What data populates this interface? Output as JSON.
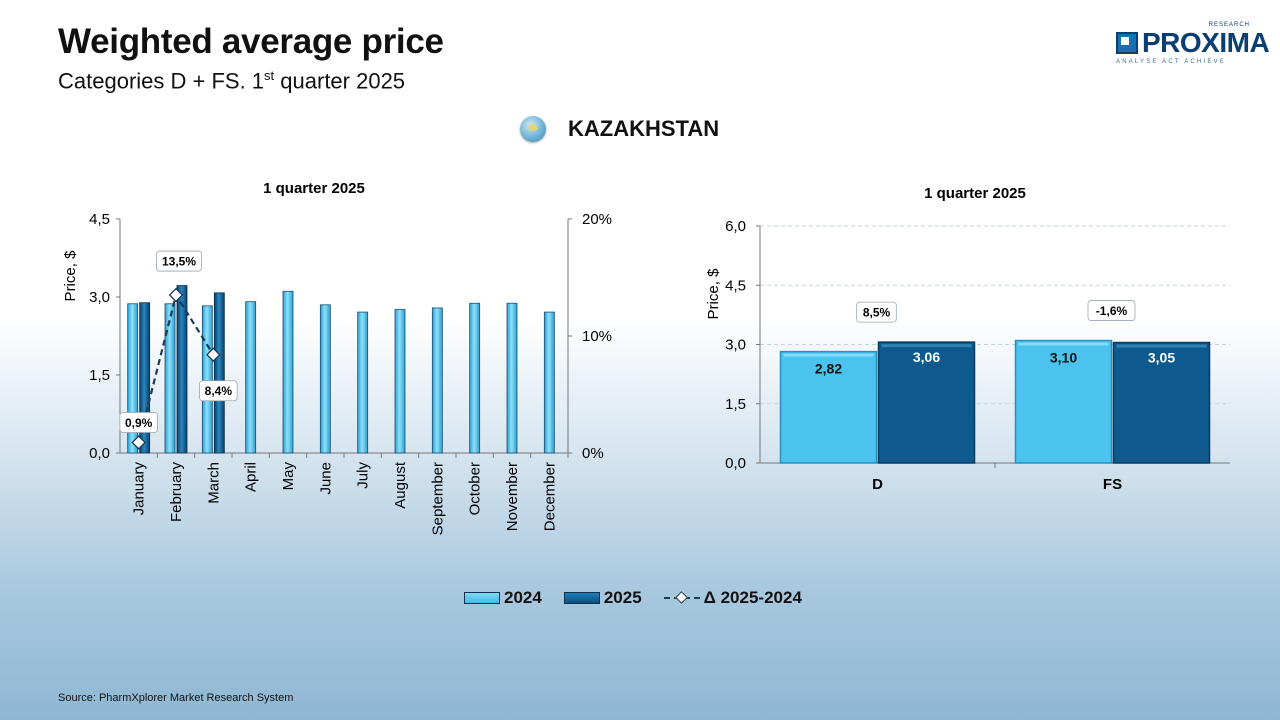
{
  "header": {
    "title": "Weighted average price",
    "subtitle_main": "Categories D + FS. 1",
    "subtitle_sup": "st",
    "subtitle_tail": " quarter 2025"
  },
  "logo": {
    "name": "PROXIMA",
    "research": "RESEARCH",
    "tagline": "ANALYSE ACT ACHIEVE"
  },
  "country": {
    "name": "KAZAKHSTAN",
    "icon": "kazakhstan-flag-icon"
  },
  "legend": {
    "s2024": "2024",
    "s2025": "2025",
    "delta": "Δ 2025-2024"
  },
  "source": "Source: PharmXplorer Market Research System",
  "colors": {
    "series_2024": "#4cc3ee",
    "series_2025": "#0e5a8e",
    "delta_line": "#1e3a5a"
  },
  "chart_data": [
    {
      "type": "bar",
      "title": "1 quarter 2025",
      "ylabel": "Price, $",
      "ylim": [
        0,
        4.5
      ],
      "yticks": [
        "0,0",
        "1,5",
        "3,0",
        "4,5"
      ],
      "y2lim": [
        0,
        20
      ],
      "y2ticks": [
        "0%",
        "10%",
        "20%"
      ],
      "categories": [
        "January",
        "February",
        "March",
        "April",
        "May",
        "June",
        "July",
        "August",
        "September",
        "October",
        "November",
        "December"
      ],
      "series": [
        {
          "name": "2024",
          "values": [
            2.87,
            2.87,
            2.83,
            2.91,
            3.11,
            2.85,
            2.71,
            2.76,
            2.79,
            2.88,
            2.88,
            2.71
          ]
        },
        {
          "name": "2025",
          "values": [
            2.89,
            3.22,
            3.08,
            null,
            null,
            null,
            null,
            null,
            null,
            null,
            null,
            null
          ]
        }
      ],
      "delta": {
        "name": "Δ 2025-2024",
        "values": [
          0.9,
          13.5,
          8.4
        ],
        "labels": [
          "0,9%",
          "13,5%",
          "8,4%"
        ]
      },
      "grid": false
    },
    {
      "type": "bar",
      "title": "1 quarter 2025",
      "ylabel": "Price, $",
      "ylim": [
        0,
        6
      ],
      "yticks": [
        "0,0",
        "1,5",
        "3,0",
        "4,5",
        "6,0"
      ],
      "categories": [
        "D",
        "FS"
      ],
      "series": [
        {
          "name": "2024",
          "values": [
            2.82,
            3.1
          ],
          "labels": [
            "2,82",
            "3,10"
          ]
        },
        {
          "name": "2025",
          "values": [
            3.06,
            3.05
          ],
          "labels": [
            "3,06",
            "3,05"
          ]
        }
      ],
      "delta_labels": [
        "8,5%",
        "-1,6%"
      ],
      "grid": true
    }
  ]
}
